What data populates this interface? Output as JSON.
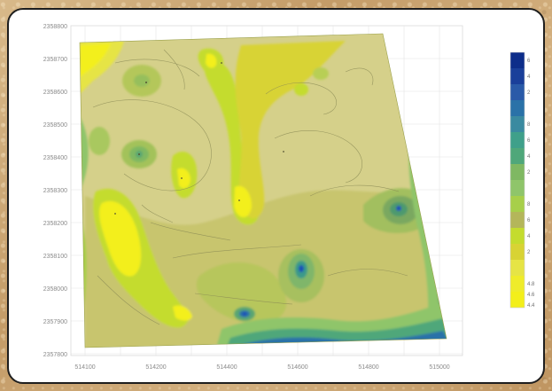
{
  "map": {
    "y_ticks": [
      "2358800",
      "2358700",
      "2358600",
      "2358500",
      "2358400",
      "2358300",
      "2358200",
      "2358100",
      "2358000",
      "2357900",
      "2357800"
    ],
    "x_ticks": [
      "514100",
      "514200",
      "514300",
      "514400",
      "514500",
      "514600",
      "514700",
      "514800",
      "514900",
      "515000",
      "515100"
    ],
    "x_tick_labels": [
      "514100",
      "514200",
      "514400",
      "514600",
      "514800",
      "515000"
    ],
    "colorbar": {
      "labels": [
        "6",
        "4",
        "2",
        "8",
        "6",
        "4",
        "2",
        "",
        "8",
        "6",
        "4",
        "2",
        "",
        "4.8",
        "4.6",
        "4.4"
      ]
    },
    "colors": {
      "pale": "#d5d08a",
      "khaki": "#c8c56e",
      "olive": "#b4b65a",
      "yellow": "#f3ef1a",
      "lime": "#c4dc2e",
      "green": "#8fc56a",
      "teal": "#3fa08a",
      "blue": "#1f4fb8",
      "navy": "#0d2d8a"
    }
  }
}
